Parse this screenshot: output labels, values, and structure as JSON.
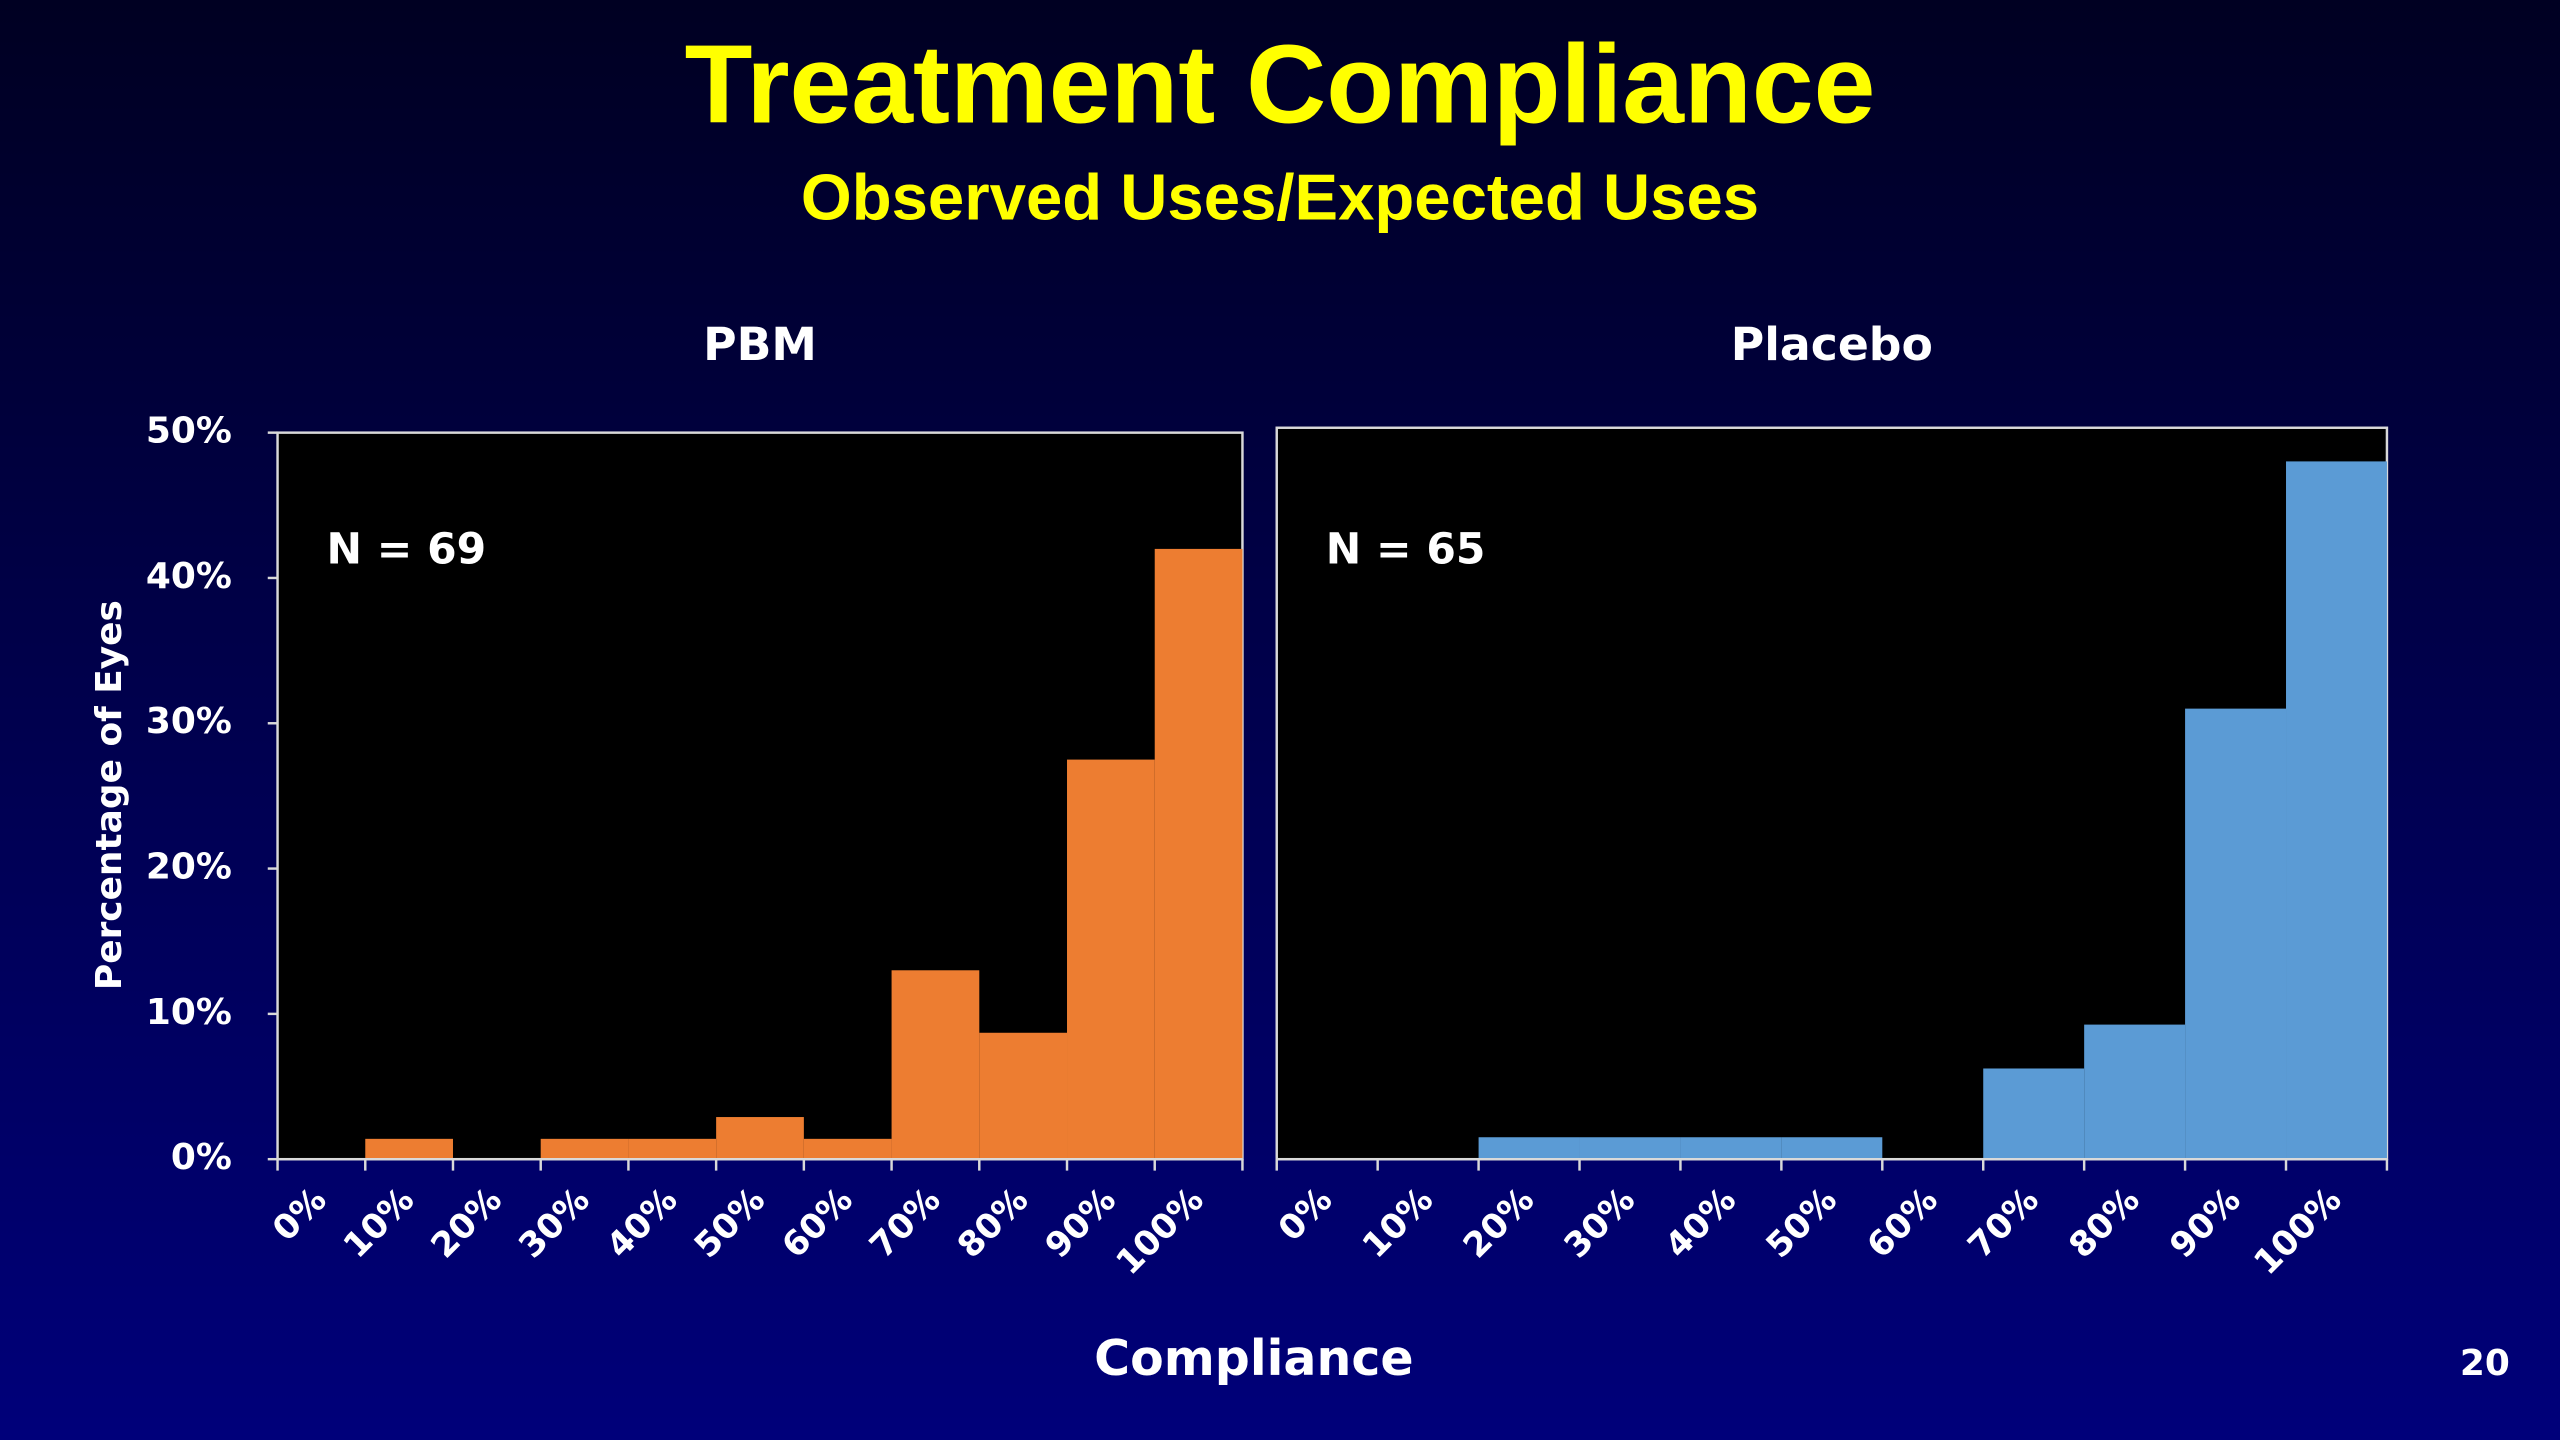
{
  "title": "Treatment Compliance",
  "subtitle": "Observed Uses/Expected Uses",
  "x_label": "Compliance",
  "y_label": "Percentage of Eyes",
  "page_number": 20,
  "chart_data": [
    {
      "type": "bar",
      "title": "PBM",
      "annotation": "N = 69",
      "color": "#ed7d31",
      "categories": [
        "0%",
        "10%",
        "20%",
        "30%",
        "40%",
        "50%",
        "60%",
        "70%",
        "80%",
        "90%",
        "100%"
      ],
      "values": [
        0,
        1.4,
        0,
        1.4,
        1.4,
        2.9,
        1.4,
        13,
        8.7,
        27.5,
        42
      ],
      "ylim": [
        0,
        50
      ],
      "yticks": [
        {
          "value": 0,
          "label": "0%"
        },
        {
          "value": 10,
          "label": "10%"
        },
        {
          "value": 20,
          "label": "20%"
        },
        {
          "value": 30,
          "label": "30%"
        },
        {
          "value": 40,
          "label": "40%"
        },
        {
          "value": 50,
          "label": "50%"
        }
      ]
    },
    {
      "type": "bar",
      "title": "Placebo",
      "annotation": "N = 65",
      "color": "#5b9bd5",
      "categories": [
        "0%",
        "10%",
        "20%",
        "30%",
        "40%",
        "50%",
        "60%",
        "70%",
        "80%",
        "90%",
        "100%"
      ],
      "values": [
        0,
        0,
        1.5,
        1.5,
        1.5,
        1.5,
        0,
        6.2,
        9.2,
        30.8,
        47.7
      ],
      "ylim": [
        0,
        50
      ]
    }
  ]
}
